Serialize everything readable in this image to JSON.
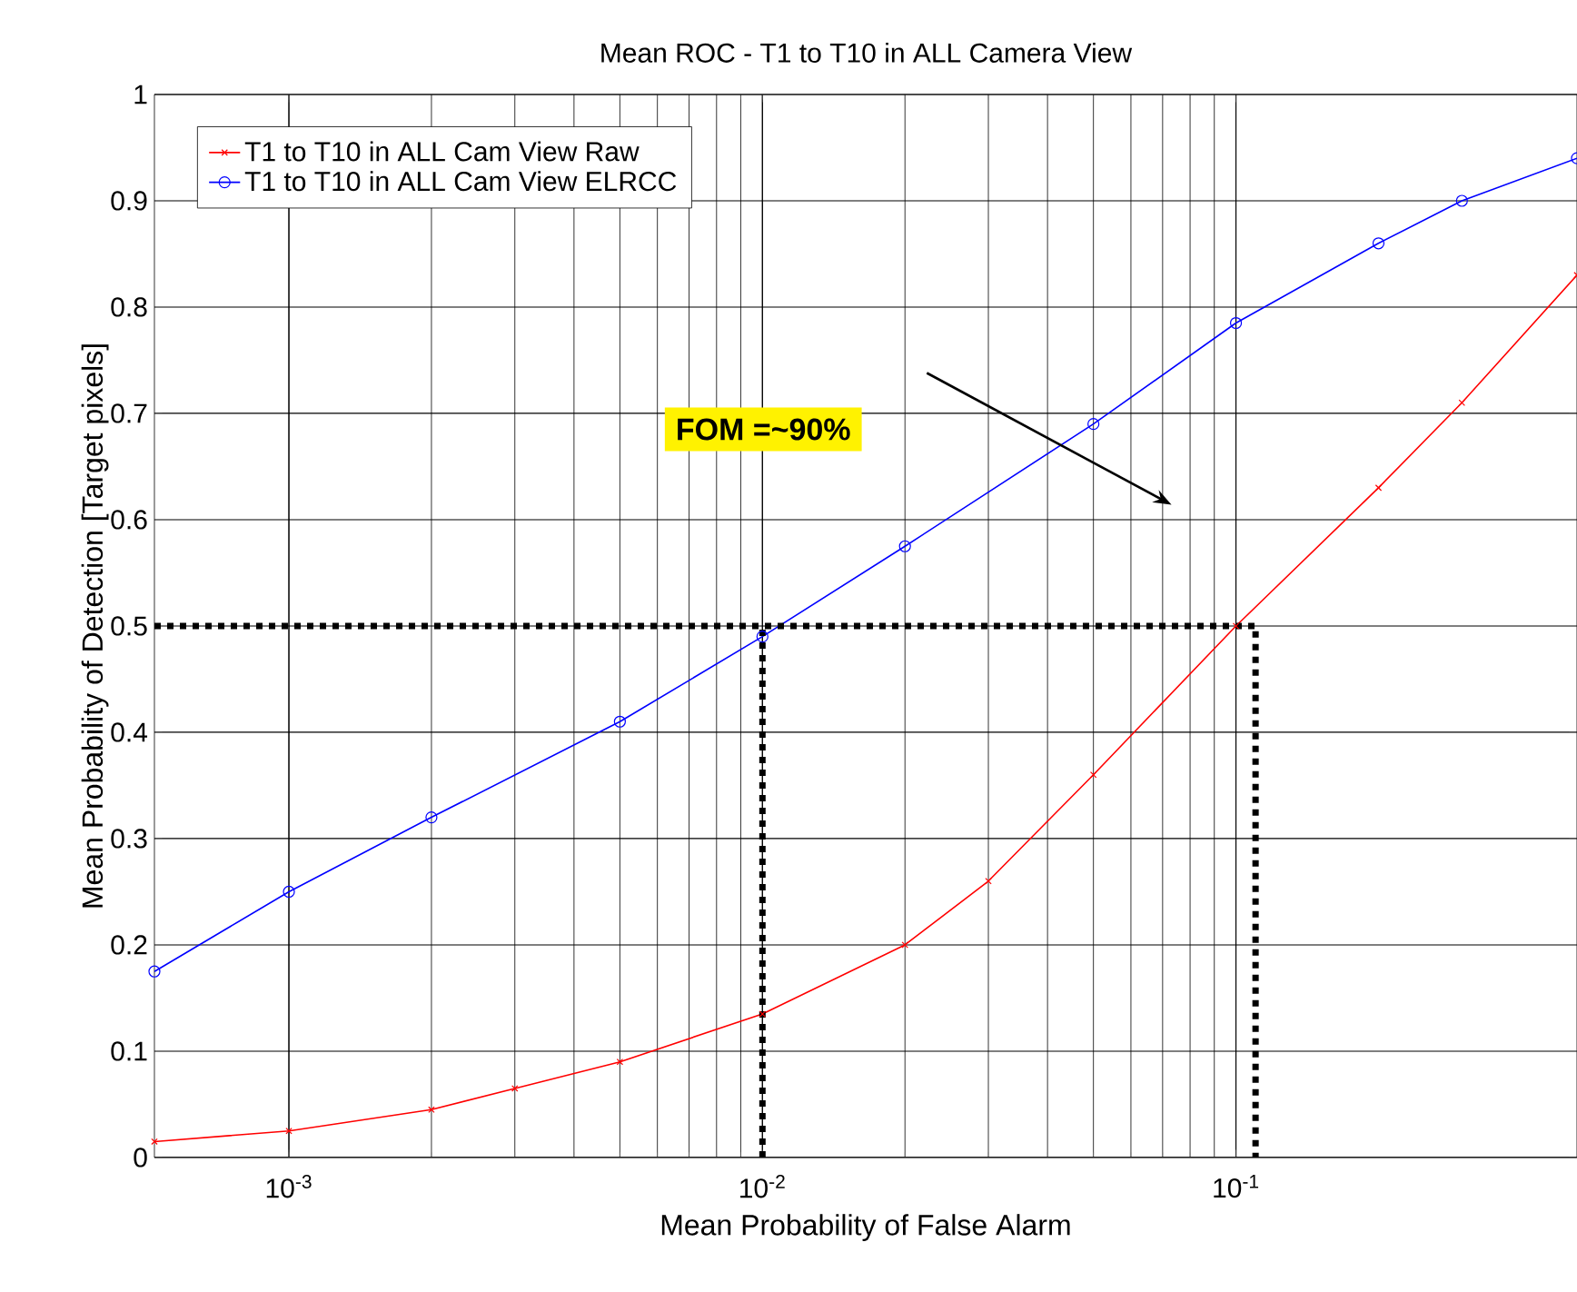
{
  "chart_data": {
    "type": "line",
    "title": "Mean ROC - T1 to T10 in ALL Camera View",
    "xlabel": "Mean Probability of False Alarm",
    "ylabel": "Mean Probability of Detection [Target pixels]",
    "log": "x",
    "grid": true,
    "legend": "top left",
    "xlim": [
      0.00052,
      0.525
    ],
    "ylim": [
      0,
      1
    ],
    "xticks": [
      {
        "value": 0.001,
        "label": "10$^{-3}$"
      },
      {
        "value": 0.01,
        "label": "10$^{-2}$"
      },
      {
        "value": 0.1,
        "label": "10$^{-1}$"
      }
    ],
    "yticks": [
      0,
      0.1,
      0.2,
      0.3,
      0.4,
      0.5,
      0.6,
      0.7,
      0.8,
      0.9,
      1
    ],
    "annotations": [
      "FOM =~90%"
    ],
    "series": [
      {
        "name": "T1 to T10 in ALL Cam View Raw",
        "color": "#ff0000",
        "marker": "cross",
        "line_style": "solid",
        "x": [
          0.00052,
          0.001,
          0.002,
          0.003,
          0.005,
          0.01,
          0.02,
          0.03,
          0.05,
          0.1,
          0.2,
          0.3,
          0.525
        ],
        "values": [
          0.015,
          0.025,
          0.045,
          0.065,
          0.09,
          0.135,
          0.2,
          0.26,
          0.36,
          0.5,
          0.63,
          0.71,
          0.83
        ]
      },
      {
        "name": "T1 to T10 in ALL Cam View ELRCC",
        "color": "#0000ff",
        "marker": "circle",
        "line_style": "solid",
        "x": [
          0.00052,
          0.001,
          0.002,
          0.005,
          0.01,
          0.02,
          0.05,
          0.1,
          0.2,
          0.3,
          0.525
        ],
        "values": [
          0.175,
          0.25,
          0.32,
          0.41,
          0.49,
          0.575,
          0.69,
          0.785,
          0.86,
          0.9,
          0.94
        ]
      },
      {
        "color": "#000000",
        "marker": "none",
        "line_style": "dotted",
        "x": [
          0.00052,
          0.11,
          0.11
        ],
        "values": [
          0.5,
          0.5,
          0
        ]
      },
      {
        "color": "#000000",
        "marker": "none",
        "line_style": "dotted",
        "x": [
          0.01,
          0.01
        ],
        "values": [
          0,
          0.5
        ]
      }
    ]
  }
}
